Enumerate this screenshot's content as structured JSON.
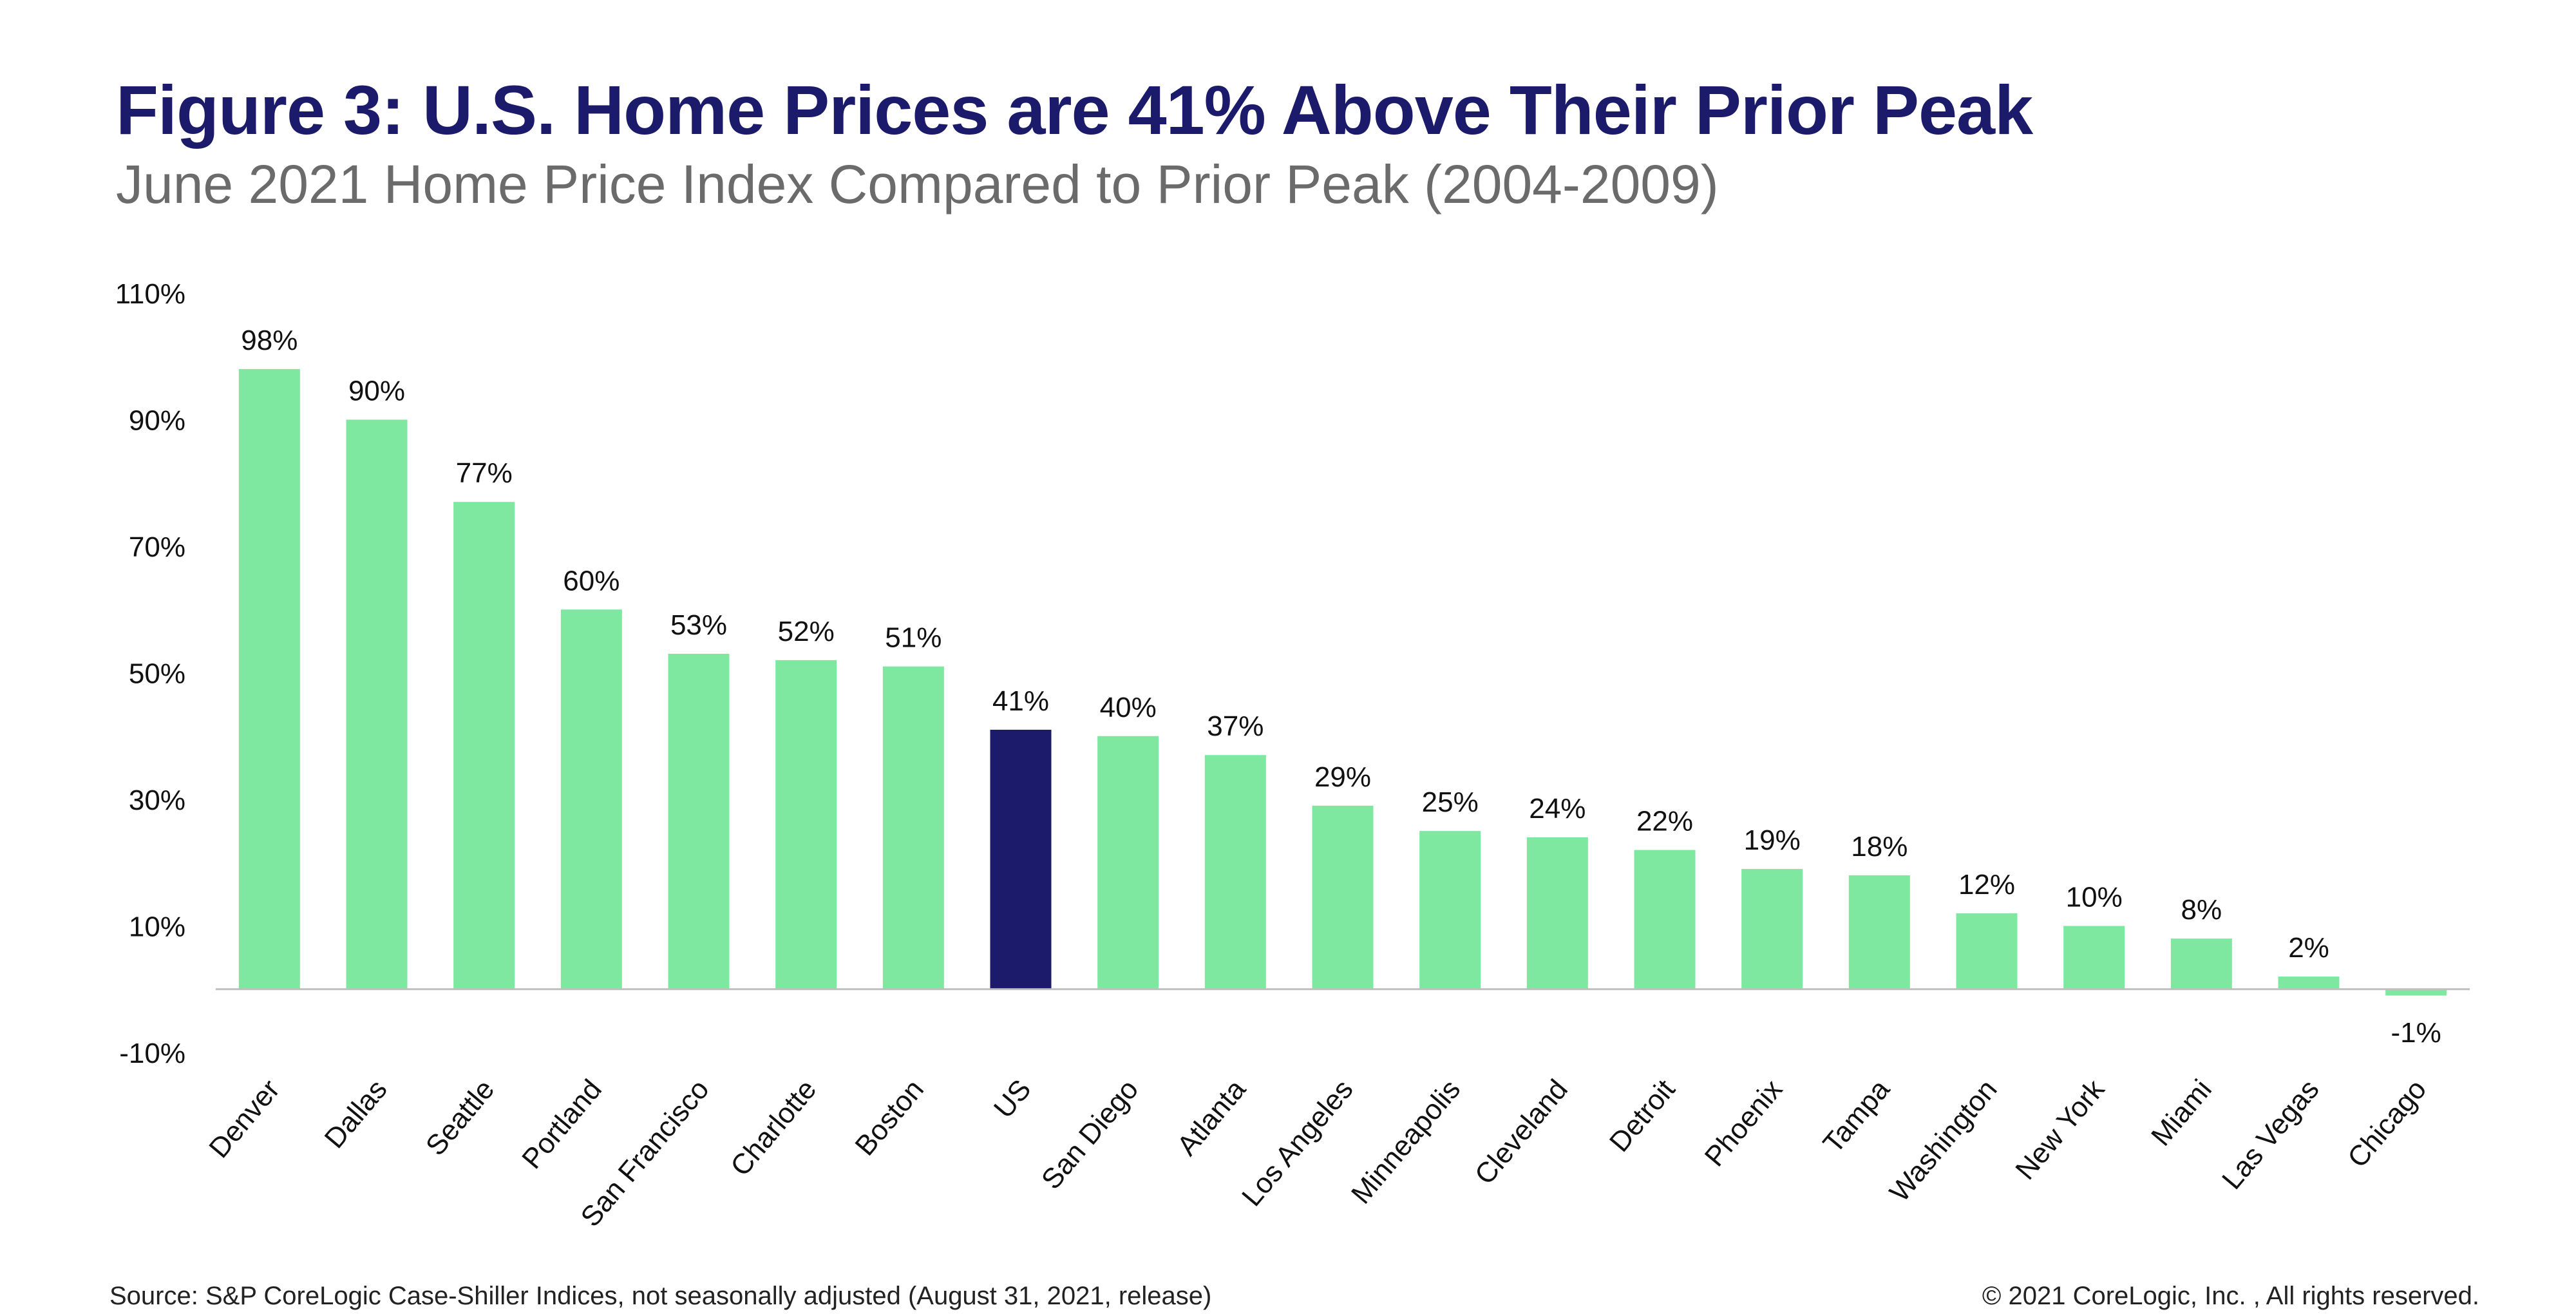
{
  "chart_data": {
    "type": "bar",
    "title": "Figure 3: U.S. Home Prices are 41% Above Their Prior Peak",
    "subtitle": "June 2021 Home Price Index Compared to Prior Peak (2004-2009)",
    "xlabel": "",
    "ylabel": "",
    "ylim": [
      -10,
      110
    ],
    "yticks": [
      -10,
      10,
      30,
      50,
      70,
      90,
      110
    ],
    "ytick_labels": [
      "-10%",
      "10%",
      "30%",
      "50%",
      "70%",
      "90%",
      "110%"
    ],
    "categories": [
      "Denver",
      "Dallas",
      "Seattle",
      "Portland",
      "San Francisco",
      "Charlotte",
      "Boston",
      "US",
      "San Diego",
      "Atlanta",
      "Los Angeles",
      "Minneapolis",
      "Cleveland",
      "Detroit",
      "Phoenix",
      "Tampa",
      "Washington",
      "New York",
      "Miami",
      "Las Vegas",
      "Chicago"
    ],
    "values": [
      98,
      90,
      77,
      60,
      53,
      52,
      51,
      41,
      40,
      37,
      29,
      25,
      24,
      22,
      19,
      18,
      12,
      10,
      8,
      2,
      -1
    ],
    "labels": [
      "98%",
      "90%",
      "77%",
      "60%",
      "53%",
      "52%",
      "51%",
      "41%",
      "40%",
      "37%",
      "29%",
      "25%",
      "24%",
      "22%",
      "19%",
      "18%",
      "12%",
      "10%",
      "8%",
      "2%",
      "-1%"
    ],
    "highlight_category": "US",
    "colors": {
      "bar": "#7ee8a0",
      "highlight": "#1b1a6b",
      "axis": "#bfbfbf",
      "text": "#111111"
    }
  },
  "footer": {
    "source": "Source:  S&P CoreLogic Case-Shiller Indices, not seasonally adjusted (August 31, 2021, release)",
    "copyright": "© 2021 CoreLogic, Inc. , All rights reserved."
  }
}
